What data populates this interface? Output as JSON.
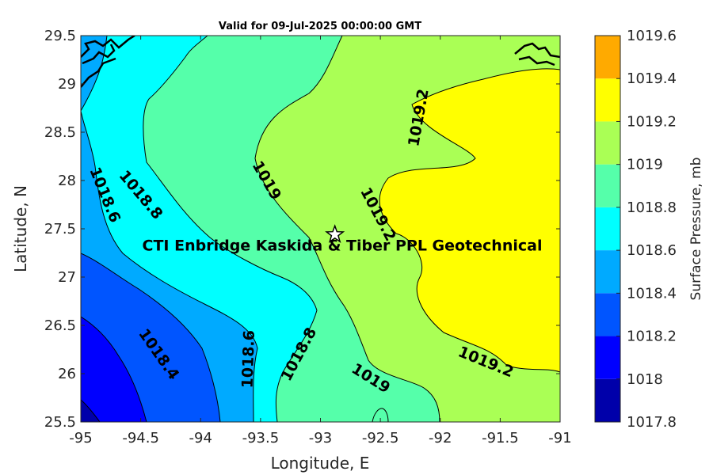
{
  "chart_data": {
    "type": "contour",
    "title": "Valid for 09-Jul-2025 00:00:00 GMT",
    "xlabel": "Longitude, E",
    "ylabel": "Latitude, N",
    "xlim": [
      -95,
      -91
    ],
    "ylim": [
      25.5,
      29.5
    ],
    "x_ticks": [
      "-95",
      "-94.5",
      "-94",
      "-93.5",
      "-93",
      "-92.5",
      "-92",
      "-91.5",
      "-91"
    ],
    "y_ticks": [
      "25.5",
      "26",
      "26.5",
      "27",
      "27.5",
      "28",
      "28.5",
      "29",
      "29.5"
    ],
    "contour_levels": [
      1017.8,
      1018,
      1018.2,
      1018.4,
      1018.6,
      1018.8,
      1019,
      1019.2,
      1019.4,
      1019.6
    ],
    "contour_labels": [
      {
        "text": "1018.4",
        "lon": -94.35,
        "lat": 26.2,
        "rotation": 55
      },
      {
        "text": "1018.6",
        "lon": -94.8,
        "lat": 27.85,
        "rotation": 68
      },
      {
        "text": "1018.6",
        "lon": -93.6,
        "lat": 26.15,
        "rotation": -88
      },
      {
        "text": "1018.8",
        "lon": -94.5,
        "lat": 27.85,
        "rotation": 50
      },
      {
        "text": "1018.8",
        "lon": -93.18,
        "lat": 26.2,
        "rotation": -62
      },
      {
        "text": "1019",
        "lon": -93.45,
        "lat": 28.0,
        "rotation": 60
      },
      {
        "text": "1019",
        "lon": -92.58,
        "lat": 25.95,
        "rotation": 32
      },
      {
        "text": "1019.2",
        "lon": -92.18,
        "lat": 28.65,
        "rotation": -80
      },
      {
        "text": "1019.2",
        "lon": -92.52,
        "lat": 27.65,
        "rotation": 62
      },
      {
        "text": "1019.2",
        "lon": -91.62,
        "lat": 26.12,
        "rotation": 22
      }
    ],
    "annotation": {
      "text": "CTI Enbridge  Kaskida & Tiber PPL Geotechnical",
      "lon": -92.88,
      "lat": 27.44,
      "marker": "star"
    },
    "colorbar": {
      "label": "Surface Pressure, mb",
      "ticks": [
        "1017.8",
        "1018",
        "1018.2",
        "1018.4",
        "1018.6",
        "1018.8",
        "1019",
        "1019.2",
        "1019.4",
        "1019.6"
      ],
      "colors": [
        "#0000aa",
        "#0000ff",
        "#0055ff",
        "#00aaff",
        "#00ffff",
        "#55ffaa",
        "#aaff55",
        "#ffff00",
        "#ffaa00",
        "#ff5500"
      ]
    },
    "grid": false,
    "legend": "none"
  }
}
